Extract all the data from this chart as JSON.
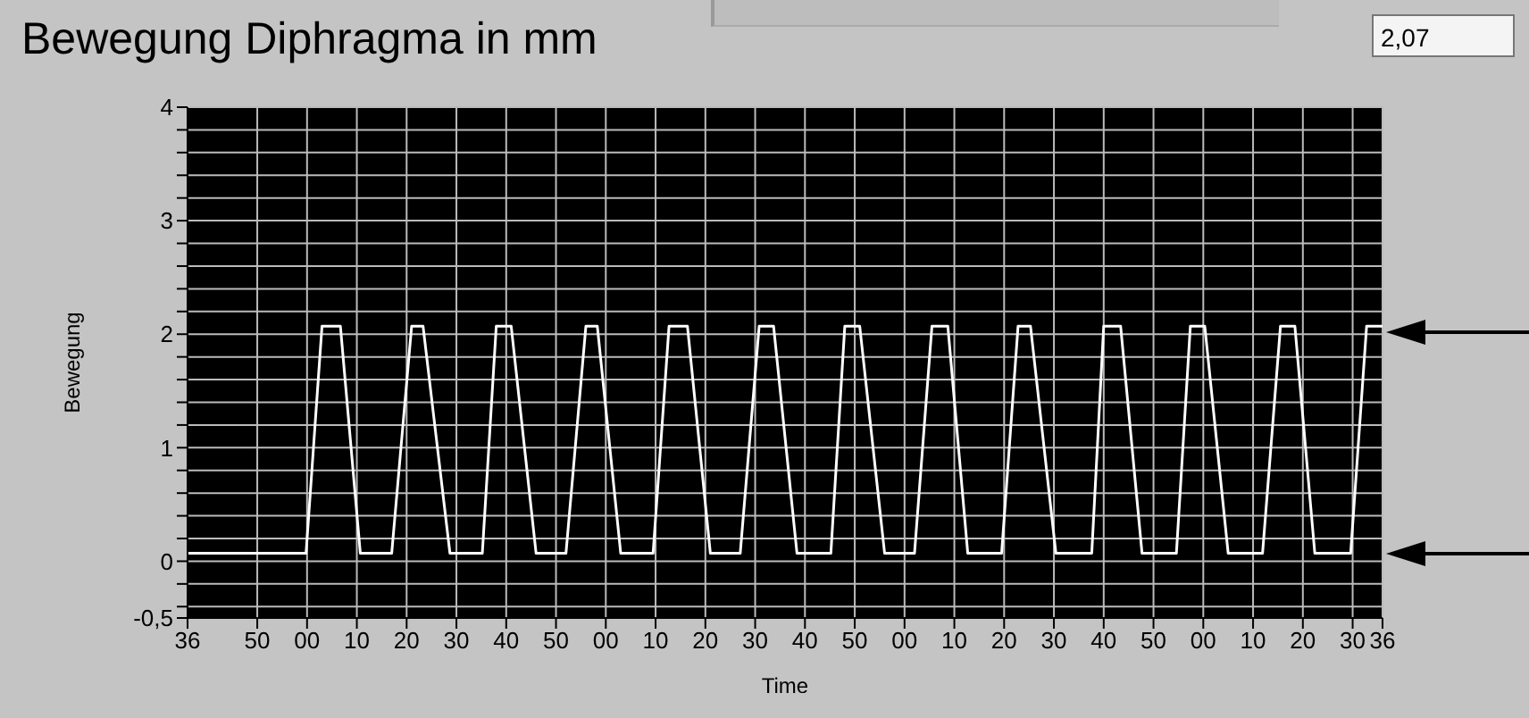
{
  "chart_data": {
    "type": "line",
    "title": "Bewegung Diphragma in mm",
    "xlabel": "Time",
    "ylabel": "Bewegung",
    "annotations": [
      "2,07"
    ],
    "x": [
      "--01-01T00:00:36",
      "--01-01T00:00:59.8",
      "--01-01T00:01:03",
      "--01-01T00:01:06.7",
      "--01-01T00:01:10.7",
      "--01-01T00:01:17",
      "--01-01T00:01:21",
      "--01-01T00:01:23.3",
      "--01-01T00:01:28.7",
      "--01-01T00:01:35.2",
      "--01-01T00:01:38",
      "--01-01T00:01:41",
      "--01-01T00:01:46",
      "--01-01T00:01:52",
      "--01-01T00:01:56",
      "--01-01T00:01:58.3",
      "--01-01T00:02:03",
      "--01-01T00:02:09.5",
      "--01-01T00:02:12.7",
      "--01-01T00:02:16.4",
      "--01-01T00:02:21",
      "--01-01T00:02:27",
      "--01-01T00:02:30.8",
      "--01-01T00:02:33.7",
      "--01-01T00:02:38.4",
      "--01-01T00:02:45.2",
      "--01-01T00:02:48",
      "--01-01T00:02:51",
      "--01-01T00:02:56",
      "--01-01T00:03:02",
      "--01-01T00:03:05.5",
      "--01-01T00:03:08.7",
      "--01-01T00:03:12.7",
      "--01-01T00:03:19.5",
      "--01-01T00:03:22.8",
      "--01-01T00:03:25.3",
      "--01-01T00:03:30.4",
      "--01-01T00:03:37.6",
      "--01-01T00:03:40",
      "--01-01T00:03:43.4",
      "--01-01T00:03:47.7",
      "--01-01T00:03:54.6",
      "--01-01T00:03:57.4",
      "--01-01T00:04:00.3",
      "--01-01T00:04:05",
      "--01-01T00:04:11.9",
      "--01-01T00:04:15.5",
      "--01-01T00:04:18.4",
      "--01-01T00:04:22.4",
      "--01-01T00:04:29.6",
      "--01-01T00:04:32.8",
      "--01-01T00:04:36"
    ],
    "values": [
      0.07,
      0.07,
      2.07,
      2.07,
      0.07,
      0.07,
      2.07,
      2.07,
      0.07,
      0.07,
      2.07,
      2.07,
      0.07,
      0.07,
      2.07,
      2.07,
      0.07,
      0.07,
      2.07,
      2.07,
      0.07,
      0.07,
      2.07,
      2.07,
      0.07,
      0.07,
      2.07,
      2.07,
      0.07,
      0.07,
      2.07,
      2.07,
      0.07,
      0.07,
      2.07,
      2.07,
      0.07,
      0.07,
      2.07,
      2.07,
      0.07,
      0.07,
      2.07,
      2.07,
      0.07,
      0.07,
      2.07,
      2.07,
      0.07,
      0.07,
      2.07,
      2.07
    ],
    "color": "#ffffff",
    "marker": "none",
    "grid": true,
    "xlim": [
      "--01-01T00:00:36",
      "--01-01T00:04:36"
    ],
    "xticks": [
      {
        "value": "--01-01T00:00:36",
        "label": "36"
      },
      {
        "value": "--01-01T00:00:50",
        "label": "50"
      },
      {
        "value": "--01-01T00:01:00",
        "label": "00"
      },
      {
        "value": "--01-01T00:01:10",
        "label": "10"
      },
      {
        "value": "--01-01T00:01:20",
        "label": "20"
      },
      {
        "value": "--01-01T00:01:30",
        "label": "30"
      },
      {
        "value": "--01-01T00:01:40",
        "label": "40"
      },
      {
        "value": "--01-01T00:01:50",
        "label": "50"
      },
      {
        "value": "--01-01T00:02:00",
        "label": "00"
      },
      {
        "value": "--01-01T00:02:10",
        "label": "10"
      },
      {
        "value": "--01-01T00:02:20",
        "label": "20"
      },
      {
        "value": "--01-01T00:02:30",
        "label": "30"
      },
      {
        "value": "--01-01T00:02:40",
        "label": "40"
      },
      {
        "value": "--01-01T00:02:50",
        "label": "50"
      },
      {
        "value": "--01-01T00:03:00",
        "label": "00"
      },
      {
        "value": "--01-01T00:03:10",
        "label": "10"
      },
      {
        "value": "--01-01T00:03:20",
        "label": "20"
      },
      {
        "value": "--01-01T00:03:30",
        "label": "30"
      },
      {
        "value": "--01-01T00:03:40",
        "label": "40"
      },
      {
        "value": "--01-01T00:03:50",
        "label": "50"
      },
      {
        "value": "--01-01T00:04:00",
        "label": "00"
      },
      {
        "value": "--01-01T00:04:10",
        "label": "10"
      },
      {
        "value": "--01-01T00:04:20",
        "label": "20"
      },
      {
        "value": "--01-01T00:04:30",
        "label": "30"
      },
      {
        "value": "--01-01T00:04:36",
        "label": "36"
      }
    ],
    "ylim": [
      -0.5,
      4
    ],
    "yticks": [
      {
        "value": -0.5,
        "label": "-0,5"
      },
      {
        "value": -0.4,
        "label": null
      },
      {
        "value": -0.2,
        "label": null
      },
      0,
      {
        "value": 0.2,
        "label": null
      },
      {
        "value": 0.4,
        "label": null
      },
      {
        "value": 0.6,
        "label": null
      },
      {
        "value": 0.8,
        "label": null
      },
      1,
      {
        "value": 1.2,
        "label": null
      },
      {
        "value": 1.4,
        "label": null
      },
      {
        "value": 1.6,
        "label": null
      },
      {
        "value": 1.8,
        "label": null
      },
      2,
      {
        "value": 2.2,
        "label": null
      },
      {
        "value": 2.4,
        "label": null
      },
      {
        "value": 2.6,
        "label": null
      },
      {
        "value": 2.8,
        "label": null
      },
      3,
      {
        "value": 3.2,
        "label": null
      },
      {
        "value": 3.4,
        "label": null
      },
      {
        "value": 3.6,
        "label": null
      },
      {
        "value": 3.8,
        "label": null
      },
      4
    ]
  }
}
